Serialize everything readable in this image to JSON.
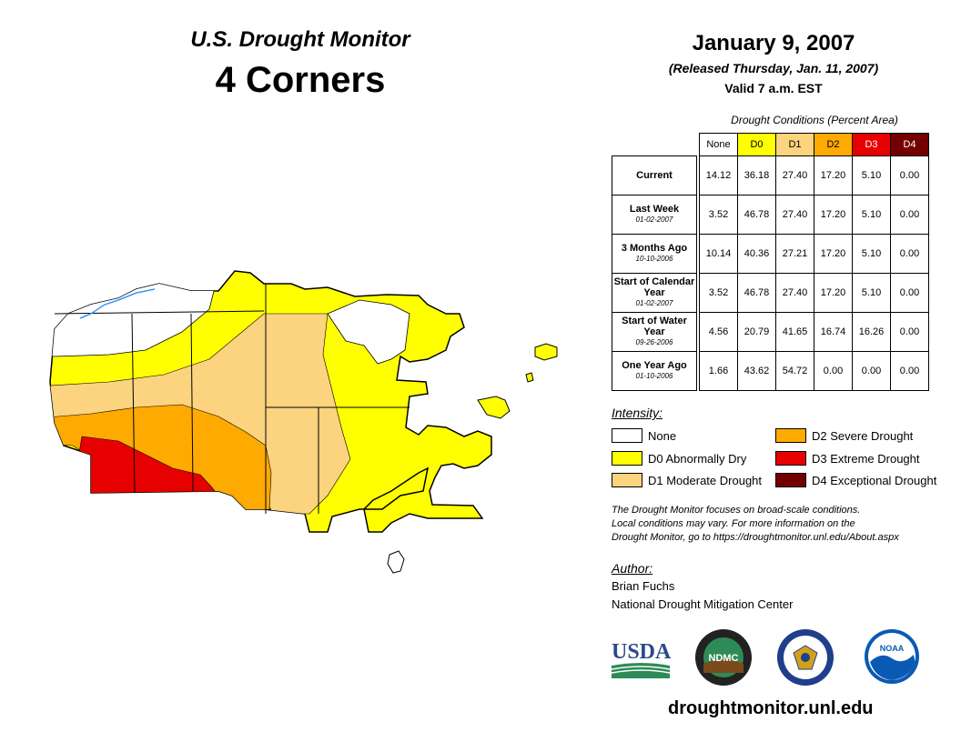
{
  "header": {
    "title": "U.S. Drought Monitor",
    "region": "4 Corners",
    "date": "January 9, 2007",
    "released": "(Released Thursday, Jan. 11, 2007)",
    "valid": "Valid 7 a.m. EST"
  },
  "table": {
    "caption": "Drought Conditions (Percent Area)",
    "columns": [
      "None",
      "D0",
      "D1",
      "D2",
      "D3",
      "D4"
    ],
    "column_colors": [
      "#ffffff",
      "#ffff00",
      "#fcd37f",
      "#ffaa00",
      "#e60000",
      "#730000"
    ],
    "rows": [
      {
        "label": "Current",
        "sub": "",
        "values": [
          "14.12",
          "36.18",
          "27.40",
          "17.20",
          "5.10",
          "0.00"
        ]
      },
      {
        "label": "Last Week",
        "sub": "01-02-2007",
        "values": [
          "3.52",
          "46.78",
          "27.40",
          "17.20",
          "5.10",
          "0.00"
        ]
      },
      {
        "label": "3 Months Ago",
        "sub": "10-10-2006",
        "values": [
          "10.14",
          "40.36",
          "27.21",
          "17.20",
          "5.10",
          "0.00"
        ]
      },
      {
        "label": "Start of Calendar Year",
        "sub": "01-02-2007",
        "values": [
          "3.52",
          "46.78",
          "27.40",
          "17.20",
          "5.10",
          "0.00"
        ]
      },
      {
        "label": "Start of Water Year",
        "sub": "09-26-2006",
        "values": [
          "4.56",
          "20.79",
          "41.65",
          "16.74",
          "16.26",
          "0.00"
        ]
      },
      {
        "label": "One Year Ago",
        "sub": "01-10-2006",
        "values": [
          "1.66",
          "43.62",
          "54.72",
          "0.00",
          "0.00",
          "0.00"
        ]
      }
    ]
  },
  "legend": {
    "heading": "Intensity:",
    "items": [
      {
        "label": "None",
        "color": "#ffffff"
      },
      {
        "label": "D0 Abnormally Dry",
        "color": "#ffff00"
      },
      {
        "label": "D1 Moderate Drought",
        "color": "#fcd37f"
      },
      {
        "label": "D2 Severe Drought",
        "color": "#ffaa00"
      },
      {
        "label": "D3 Extreme Drought",
        "color": "#e60000"
      },
      {
        "label": "D4 Exceptional Drought",
        "color": "#730000"
      }
    ]
  },
  "note": [
    "The Drought Monitor focuses on broad-scale conditions.",
    "Local conditions may vary. For more information on the",
    "Drought Monitor, go to https://droughtmonitor.unl.edu/About.aspx"
  ],
  "author": {
    "heading": "Author:",
    "name": "Brian Fuchs",
    "org": "National Drought Mitigation Center"
  },
  "logos": {
    "usda": "USDA",
    "ndmc": "NDMC",
    "noaa": "NOAA"
  },
  "footer_url": "droughtmonitor.unl.edu"
}
